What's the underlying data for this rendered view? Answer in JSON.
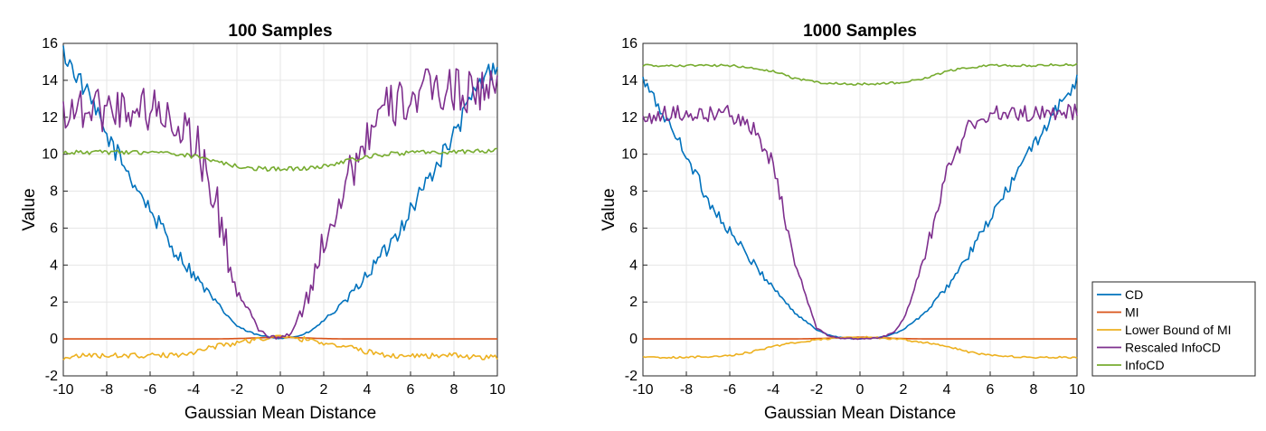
{
  "chart_data": [
    {
      "type": "line",
      "title": "100 Samples",
      "xlabel": "Gaussian Mean Distance",
      "ylabel": "Value",
      "xlim": [
        -10,
        10
      ],
      "ylim": [
        -2,
        16
      ],
      "xticks": [
        -10,
        -8,
        -6,
        -4,
        -2,
        0,
        2,
        4,
        6,
        8,
        10
      ],
      "yticks": [
        -2,
        0,
        2,
        4,
        6,
        8,
        10,
        12,
        14,
        16
      ],
      "grid": true,
      "x": [
        -10,
        -9,
        -8,
        -7,
        -6,
        -5,
        -4,
        -3,
        -2,
        -1.5,
        -1,
        -0.5,
        0,
        0.5,
        1,
        1.5,
        2,
        3,
        4,
        5,
        6,
        7,
        8,
        9,
        10
      ],
      "series": [
        {
          "name": "CD",
          "color": "#0072BD",
          "values": [
            15.5,
            13.5,
            11.0,
            9.0,
            7.0,
            5.0,
            3.5,
            2.0,
            0.7,
            0.4,
            0.2,
            0.1,
            0.05,
            0.1,
            0.2,
            0.5,
            1.0,
            2.0,
            3.5,
            5.0,
            7.0,
            9.0,
            11.0,
            13.5,
            15.0
          ]
        },
        {
          "name": "MI",
          "color": "#D95319",
          "values": [
            0,
            0,
            0,
            0,
            0,
            0,
            0,
            0,
            0.02,
            0.04,
            0.06,
            0.08,
            0.1,
            0.08,
            0.06,
            0.04,
            0.02,
            0,
            0,
            0,
            0,
            0,
            0,
            0,
            0
          ]
        },
        {
          "name": "Lower Bound of MI",
          "color": "#EDB120",
          "values": [
            -1.0,
            -0.9,
            -0.9,
            -0.9,
            -0.9,
            -0.9,
            -0.7,
            -0.4,
            -0.2,
            -0.1,
            0,
            0.05,
            0.1,
            0.05,
            0,
            -0.1,
            -0.2,
            -0.4,
            -0.7,
            -0.9,
            -0.9,
            -0.9,
            -0.9,
            -1.0,
            -1.0
          ]
        },
        {
          "name": "Rescaled InfoCD",
          "color": "#7E2F8E",
          "values": [
            12.5,
            12.5,
            12.5,
            12.5,
            12.5,
            12.0,
            11.0,
            7.5,
            2.5,
            1.5,
            0.5,
            0.1,
            0.05,
            0.3,
            1.5,
            3.0,
            5.5,
            8.5,
            11.0,
            12.5,
            13.0,
            13.5,
            13.5,
            13.5,
            13.5
          ]
        },
        {
          "name": "InfoCD",
          "color": "#77AC30",
          "values": [
            10.1,
            10.1,
            10.1,
            10.1,
            10.1,
            10.0,
            9.9,
            9.6,
            9.35,
            9.28,
            9.22,
            9.2,
            9.2,
            9.2,
            9.22,
            9.28,
            9.35,
            9.6,
            9.9,
            10.0,
            10.1,
            10.1,
            10.1,
            10.2,
            10.2
          ]
        }
      ]
    },
    {
      "type": "line",
      "title": "1000 Samples",
      "xlabel": "Gaussian Mean Distance",
      "ylabel": "Value",
      "xlim": [
        -10,
        10
      ],
      "ylim": [
        -2,
        16
      ],
      "xticks": [
        -10,
        -8,
        -6,
        -4,
        -2,
        0,
        2,
        4,
        6,
        8,
        10
      ],
      "yticks": [
        -2,
        0,
        2,
        4,
        6,
        8,
        10,
        12,
        14,
        16
      ],
      "grid": true,
      "x": [
        -10,
        -9,
        -8,
        -7,
        -6,
        -5,
        -4,
        -3,
        -2,
        -1.5,
        -1,
        -0.5,
        0,
        0.5,
        1,
        1.5,
        2,
        3,
        4,
        5,
        6,
        7,
        8,
        9,
        10
      ],
      "series": [
        {
          "name": "CD",
          "color": "#0072BD",
          "values": [
            14.0,
            12.0,
            10.0,
            7.5,
            5.8,
            4.2,
            2.8,
            1.4,
            0.5,
            0.25,
            0.1,
            0.04,
            0.02,
            0.04,
            0.1,
            0.25,
            0.5,
            1.4,
            2.8,
            4.5,
            6.5,
            8.5,
            10.5,
            12.3,
            14.0
          ]
        },
        {
          "name": "MI",
          "color": "#D95319",
          "values": [
            0,
            0,
            0,
            0,
            0,
            0,
            0,
            0,
            0.02,
            0.04,
            0.06,
            0.08,
            0.1,
            0.08,
            0.06,
            0.04,
            0.02,
            0,
            0,
            0,
            0,
            0,
            0,
            0,
            0
          ]
        },
        {
          "name": "Lower Bound of MI",
          "color": "#EDB120",
          "values": [
            -1.0,
            -1.0,
            -1.0,
            -0.95,
            -0.9,
            -0.7,
            -0.4,
            -0.2,
            -0.05,
            0,
            0.05,
            0.08,
            0.1,
            0.08,
            0.05,
            0,
            -0.05,
            -0.2,
            -0.4,
            -0.7,
            -0.9,
            -0.95,
            -1.0,
            -1.0,
            -1.0
          ]
        },
        {
          "name": "Rescaled InfoCD",
          "color": "#7E2F8E",
          "values": [
            12.0,
            12.2,
            12.2,
            12.2,
            12.2,
            11.5,
            9.5,
            4.0,
            0.6,
            0.2,
            0.05,
            0.02,
            0.01,
            0.02,
            0.1,
            0.3,
            1.0,
            4.5,
            9.0,
            11.5,
            12.2,
            12.2,
            12.2,
            12.3,
            12.3
          ]
        },
        {
          "name": "InfoCD",
          "color": "#77AC30",
          "values": [
            14.8,
            14.8,
            14.8,
            14.8,
            14.8,
            14.7,
            14.5,
            14.1,
            13.9,
            13.85,
            13.82,
            13.8,
            13.8,
            13.8,
            13.82,
            13.85,
            13.9,
            14.1,
            14.5,
            14.7,
            14.8,
            14.8,
            14.8,
            14.85,
            14.85
          ]
        }
      ]
    }
  ],
  "legend": {
    "placement": "right",
    "entries": [
      {
        "label": "CD",
        "color": "#0072BD"
      },
      {
        "label": "MI",
        "color": "#D95319"
      },
      {
        "label": "Lower Bound of MI",
        "color": "#EDB120"
      },
      {
        "label": "Rescaled InfoCD",
        "color": "#7E2F8E"
      },
      {
        "label": "InfoCD",
        "color": "#77AC30"
      }
    ]
  }
}
